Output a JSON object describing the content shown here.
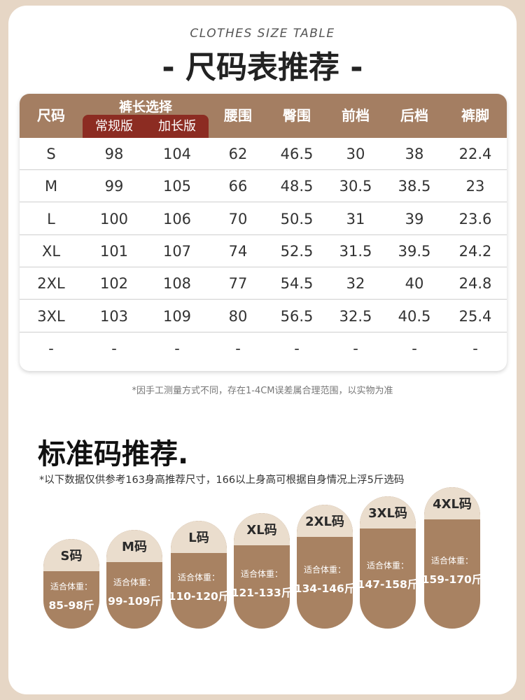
{
  "header": {
    "subtitle": "CLOTHES SIZE TABLE",
    "title": "- 尺码表推荐 -"
  },
  "table": {
    "columns": {
      "size": "尺码",
      "length_group": "裤长选择",
      "regular": "常规版",
      "long": "加长版",
      "waist": "腰围",
      "hip": "臀围",
      "front_rise": "前档",
      "back_rise": "后档",
      "leg_opening": "裤脚"
    },
    "rows": [
      [
        "S",
        "98",
        "104",
        "62",
        "46.5",
        "30",
        "38",
        "22.4"
      ],
      [
        "M",
        "99",
        "105",
        "66",
        "48.5",
        "30.5",
        "38.5",
        "23"
      ],
      [
        "L",
        "100",
        "106",
        "70",
        "50.5",
        "31",
        "39",
        "23.6"
      ],
      [
        "XL",
        "101",
        "107",
        "74",
        "52.5",
        "31.5",
        "39.5",
        "24.2"
      ],
      [
        "2XL",
        "102",
        "108",
        "77",
        "54.5",
        "32",
        "40",
        "24.8"
      ],
      [
        "3XL",
        "103",
        "109",
        "80",
        "56.5",
        "32.5",
        "40.5",
        "25.4"
      ],
      [
        "-",
        "-",
        "-",
        "-",
        "-",
        "-",
        "-",
        "-"
      ]
    ]
  },
  "measure_note": "*因手工测量方式不同，存在1-4CM误差属合理范围，以实物为准",
  "recommend": {
    "title": "标准码推荐.",
    "note": "*以下数据仅供参考163身高推荐尺寸，166以上身高可根据自身情况上浮5斤选码",
    "fit_label": "适合体重：",
    "sizes": [
      {
        "size": "S码",
        "range": "85-98斤"
      },
      {
        "size": "M码",
        "range": "99-109斤"
      },
      {
        "size": "L码",
        "range": "110-120斤"
      },
      {
        "size": "XL码",
        "range": "121-133斤"
      },
      {
        "size": "2XL码",
        "range": "134-146斤"
      },
      {
        "size": "3XL码",
        "range": "147-158斤"
      },
      {
        "size": "4XL码",
        "range": "159-170斤"
      }
    ]
  },
  "colors": {
    "header_brown": "#a47e62",
    "header_red": "#8c2c22",
    "pill_top": "#eaddcd",
    "pill_body": "#a88262",
    "page_bg": "#e6d6c5"
  }
}
